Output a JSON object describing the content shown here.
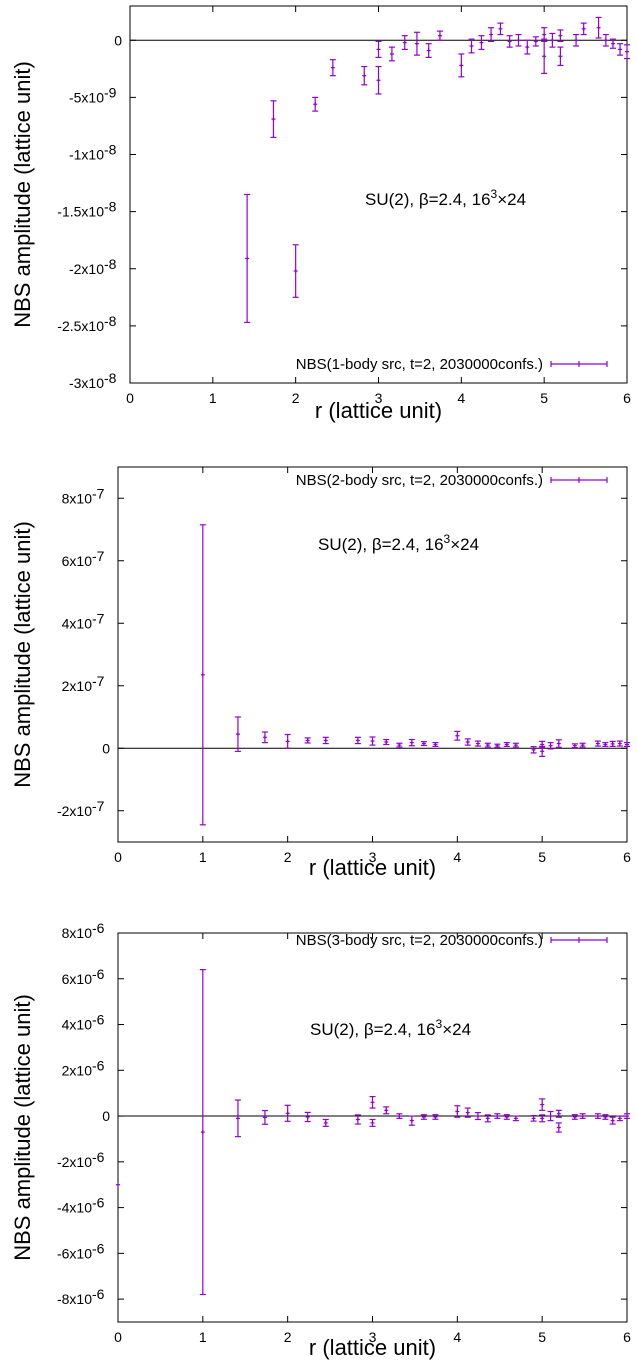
{
  "chart_data": [
    {
      "type": "scatter",
      "xlabel": "r (lattice unit)",
      "ylabel": "NBS amplitude (lattice unit)",
      "xlim": [
        0,
        6
      ],
      "ylim": [
        -3e-08,
        3e-09
      ],
      "xticks": [
        {
          "v": 0,
          "label": "0"
        },
        {
          "v": 1,
          "label": "1"
        },
        {
          "v": 2,
          "label": "2"
        },
        {
          "v": 3,
          "label": "3"
        },
        {
          "v": 4,
          "label": "4"
        },
        {
          "v": 5,
          "label": "5"
        },
        {
          "v": 6,
          "label": "6"
        }
      ],
      "yticks": [
        {
          "v": 0,
          "mant": "0",
          "exp": ""
        },
        {
          "v": -5e-09,
          "mant": "-5x10",
          "exp": "-9"
        },
        {
          "v": -1e-08,
          "mant": "-1x10",
          "exp": "-8"
        },
        {
          "v": -1.5e-08,
          "mant": "-1.5x10",
          "exp": "-8"
        },
        {
          "v": -2e-08,
          "mant": "-2x10",
          "exp": "-8"
        },
        {
          "v": -2.5e-08,
          "mant": "-2.5x10",
          "exp": "-8"
        },
        {
          "v": -3e-08,
          "mant": "-3x10",
          "exp": "-8"
        }
      ],
      "zero_line": true,
      "legend": {
        "position": "bottom-right",
        "entry": "NBS(1-body src, t=2, 2030000confs.)"
      },
      "annotation": {
        "text_a": "SU(2), β=2.4, 16",
        "sup": "3",
        "text_b": "×24",
        "position": "upper-right"
      },
      "series": [
        {
          "color": "#9400d3",
          "points": [
            {
              "x": 1.414,
              "y": -1.91e-08,
              "err": 5.6e-09
            },
            {
              "x": 1.732,
              "y": -6.9e-09,
              "err": 1.6e-09
            },
            {
              "x": 2.0,
              "y": -2.02e-08,
              "err": 2.3e-09
            },
            {
              "x": 2.236,
              "y": -5.6e-09,
              "err": 6e-10
            },
            {
              "x": 2.449,
              "y": -2.4e-09,
              "err": 7e-10
            },
            {
              "x": 2.828,
              "y": -3.1e-09,
              "err": 8e-10
            },
            {
              "x": 3.0,
              "y": -3.5e-09,
              "err": 1.2e-09
            },
            {
              "x": 3.0,
              "y": -8e-10,
              "err": 7e-10
            },
            {
              "x": 3.162,
              "y": -1.2e-09,
              "err": 6e-10
            },
            {
              "x": 3.317,
              "y": -2e-10,
              "err": 6e-10
            },
            {
              "x": 3.464,
              "y": -3e-10,
              "err": 1e-09
            },
            {
              "x": 3.606,
              "y": -9e-10,
              "err": 6e-10
            },
            {
              "x": 3.742,
              "y": 4e-10,
              "err": 4e-10
            },
            {
              "x": 4.0,
              "y": -2.2e-09,
              "err": 1e-09
            },
            {
              "x": 4.123,
              "y": -5e-10,
              "err": 6e-10
            },
            {
              "x": 4.243,
              "y": -2e-10,
              "err": 6e-10
            },
            {
              "x": 4.359,
              "y": 5e-10,
              "err": 6e-10
            },
            {
              "x": 4.472,
              "y": 1e-09,
              "err": 5e-10
            },
            {
              "x": 4.583,
              "y": -1e-10,
              "err": 5e-10
            },
            {
              "x": 4.69,
              "y": 0,
              "err": 5e-10
            },
            {
              "x": 4.796,
              "y": -6e-10,
              "err": 6e-10
            },
            {
              "x": 4.899,
              "y": -1e-10,
              "err": 4e-10
            },
            {
              "x": 5.0,
              "y": -1.4e-09,
              "err": 1.5e-09
            },
            {
              "x": 5.0,
              "y": 5e-10,
              "err": 6e-10
            },
            {
              "x": 5.099,
              "y": 0,
              "err": 6e-10
            },
            {
              "x": 5.196,
              "y": -1.4e-09,
              "err": 8e-10
            },
            {
              "x": 5.196,
              "y": 4e-10,
              "err": 5e-10
            },
            {
              "x": 5.385,
              "y": 0,
              "err": 5e-10
            },
            {
              "x": 5.477,
              "y": 1e-09,
              "err": 5e-10
            },
            {
              "x": 5.657,
              "y": 1.1e-09,
              "err": 9e-10
            },
            {
              "x": 5.745,
              "y": 0,
              "err": 5e-10
            },
            {
              "x": 5.831,
              "y": -3e-10,
              "err": 4e-10
            },
            {
              "x": 5.916,
              "y": -8e-10,
              "err": 5e-10
            },
            {
              "x": 6.0,
              "y": -1e-09,
              "err": 6e-10
            }
          ]
        }
      ]
    },
    {
      "type": "scatter",
      "xlabel": "r (lattice unit)",
      "ylabel": "NBS amplitude (lattice unit)",
      "xlim": [
        0,
        6
      ],
      "ylim": [
        -3e-07,
        9e-07
      ],
      "xticks": [
        {
          "v": 0,
          "label": "0"
        },
        {
          "v": 1,
          "label": "1"
        },
        {
          "v": 2,
          "label": "2"
        },
        {
          "v": 3,
          "label": "3"
        },
        {
          "v": 4,
          "label": "4"
        },
        {
          "v": 5,
          "label": "5"
        },
        {
          "v": 6,
          "label": "6"
        }
      ],
      "yticks": [
        {
          "v": 8e-07,
          "mant": "8x10",
          "exp": "-7"
        },
        {
          "v": 6e-07,
          "mant": "6x10",
          "exp": "-7"
        },
        {
          "v": 4e-07,
          "mant": "4x10",
          "exp": "-7"
        },
        {
          "v": 2e-07,
          "mant": "2x10",
          "exp": "-7"
        },
        {
          "v": 0,
          "mant": "0",
          "exp": ""
        },
        {
          "v": -2e-07,
          "mant": "-2x10",
          "exp": "-7"
        }
      ],
      "zero_line": true,
      "legend": {
        "position": "top-right",
        "entry": "NBS(2-body src, t=2, 2030000confs.)"
      },
      "annotation": {
        "text_a": "SU(2), β=2.4, 16",
        "sup": "3",
        "text_b": "×24",
        "position": "upper-right"
      },
      "series": [
        {
          "color": "#9400d3",
          "points": [
            {
              "x": 1.0,
              "y": 2.35e-07,
              "err": 4.8e-07
            },
            {
              "x": 1.414,
              "y": 4.5e-08,
              "err": 5.5e-08
            },
            {
              "x": 1.732,
              "y": 3.5e-08,
              "err": 1.7e-08
            },
            {
              "x": 2.0,
              "y": 2.2e-08,
              "err": 2.2e-08
            },
            {
              "x": 2.236,
              "y": 2.5e-08,
              "err": 8e-09
            },
            {
              "x": 2.449,
              "y": 2.5e-08,
              "err": 1e-08
            },
            {
              "x": 2.828,
              "y": 2.5e-08,
              "err": 1e-08
            },
            {
              "x": 3.0,
              "y": 2.3e-08,
              "err": 1.3e-08
            },
            {
              "x": 3.162,
              "y": 2e-08,
              "err": 8e-09
            },
            {
              "x": 3.317,
              "y": 1e-08,
              "err": 6e-09
            },
            {
              "x": 3.464,
              "y": 1.8e-08,
              "err": 1e-08
            },
            {
              "x": 3.606,
              "y": 1.5e-08,
              "err": 6e-09
            },
            {
              "x": 3.742,
              "y": 1.2e-08,
              "err": 6e-09
            },
            {
              "x": 4.0,
              "y": 4e-08,
              "err": 1.4e-08
            },
            {
              "x": 4.123,
              "y": 2e-08,
              "err": 1e-08
            },
            {
              "x": 4.243,
              "y": 1.5e-08,
              "err": 8e-09
            },
            {
              "x": 4.359,
              "y": 1e-08,
              "err": 6e-09
            },
            {
              "x": 4.472,
              "y": 8e-09,
              "err": 5e-09
            },
            {
              "x": 4.583,
              "y": 1.2e-08,
              "err": 6e-09
            },
            {
              "x": 4.69,
              "y": 1e-08,
              "err": 6e-09
            },
            {
              "x": 4.899,
              "y": -5e-09,
              "err": 1e-08
            },
            {
              "x": 5.0,
              "y": -1e-08,
              "err": 1.6e-08
            },
            {
              "x": 5.0,
              "y": 1.2e-08,
              "err": 1e-08
            },
            {
              "x": 5.099,
              "y": 8e-09,
              "err": 1e-08
            },
            {
              "x": 5.196,
              "y": 1.5e-08,
              "err": 1.2e-08
            },
            {
              "x": 5.385,
              "y": 8e-09,
              "err": 6e-09
            },
            {
              "x": 5.477,
              "y": 1e-08,
              "err": 6e-09
            },
            {
              "x": 5.657,
              "y": 1.5e-08,
              "err": 8e-09
            },
            {
              "x": 5.745,
              "y": 1.2e-08,
              "err": 6e-09
            },
            {
              "x": 5.831,
              "y": 1.4e-08,
              "err": 8e-09
            },
            {
              "x": 5.916,
              "y": 1.5e-08,
              "err": 8e-09
            },
            {
              "x": 6.0,
              "y": 1.2e-08,
              "err": 6e-09
            }
          ]
        }
      ]
    },
    {
      "type": "scatter",
      "xlabel": "r (lattice unit)",
      "ylabel": "NBS amplitude (lattice unit)",
      "xlim": [
        0,
        6
      ],
      "ylim": [
        -9e-06,
        8e-06
      ],
      "xticks": [
        {
          "v": 0,
          "label": "0"
        },
        {
          "v": 1,
          "label": "1"
        },
        {
          "v": 2,
          "label": "2"
        },
        {
          "v": 3,
          "label": "3"
        },
        {
          "v": 4,
          "label": "4"
        },
        {
          "v": 5,
          "label": "5"
        },
        {
          "v": 6,
          "label": "6"
        }
      ],
      "yticks": [
        {
          "v": 8e-06,
          "mant": "8x10",
          "exp": "-6"
        },
        {
          "v": 6e-06,
          "mant": "6x10",
          "exp": "-6"
        },
        {
          "v": 4e-06,
          "mant": "4x10",
          "exp": "-6"
        },
        {
          "v": 2e-06,
          "mant": "2x10",
          "exp": "-6"
        },
        {
          "v": 0,
          "mant": "0",
          "exp": ""
        },
        {
          "v": -2e-06,
          "mant": "-2x10",
          "exp": "-6"
        },
        {
          "v": -4e-06,
          "mant": "-4x10",
          "exp": "-6"
        },
        {
          "v": -6e-06,
          "mant": "-6x10",
          "exp": "-6"
        },
        {
          "v": -8e-06,
          "mant": "-8x10",
          "exp": "-6"
        }
      ],
      "zero_line": true,
      "legend": {
        "position": "top-right",
        "entry": "NBS(3-body src, t=2, 2030000confs.)"
      },
      "annotation": {
        "text_a": "SU(2), β=2.4, 16",
        "sup": "3",
        "text_b": "×24",
        "position": "upper-right"
      },
      "series": [
        {
          "color": "#9400d3",
          "points": [
            {
              "x": 0.0,
              "y": -3e-06,
              "err": 0
            },
            {
              "x": 1.0,
              "y": -7e-07,
              "err": 7.1e-06
            },
            {
              "x": 1.414,
              "y": -1e-07,
              "err": 8e-07
            },
            {
              "x": 1.732,
              "y": -6e-08,
              "err": 3e-07
            },
            {
              "x": 2.0,
              "y": 1.2e-07,
              "err": 3.5e-07
            },
            {
              "x": 2.236,
              "y": -4e-08,
              "err": 2e-07
            },
            {
              "x": 2.449,
              "y": -3e-07,
              "err": 1.5e-07
            },
            {
              "x": 2.828,
              "y": -1.5e-07,
              "err": 2e-07
            },
            {
              "x": 3.0,
              "y": -3e-07,
              "err": 1.5e-07
            },
            {
              "x": 3.0,
              "y": 6e-07,
              "err": 2.5e-07
            },
            {
              "x": 3.162,
              "y": 2.5e-07,
              "err": 1.5e-07
            },
            {
              "x": 3.317,
              "y": 0,
              "err": 1e-07
            },
            {
              "x": 3.464,
              "y": -2e-07,
              "err": 2e-07
            },
            {
              "x": 3.606,
              "y": -4e-08,
              "err": 1e-07
            },
            {
              "x": 3.742,
              "y": -4e-08,
              "err": 1e-07
            },
            {
              "x": 4.0,
              "y": 2e-07,
              "err": 2.5e-07
            },
            {
              "x": 4.123,
              "y": 1.5e-07,
              "err": 2e-07
            },
            {
              "x": 4.243,
              "y": 0,
              "err": 1.5e-07
            },
            {
              "x": 4.359,
              "y": -1e-07,
              "err": 1.5e-07
            },
            {
              "x": 4.472,
              "y": 0,
              "err": 1e-07
            },
            {
              "x": 4.583,
              "y": -4e-08,
              "err": 1e-07
            },
            {
              "x": 4.69,
              "y": -1e-07,
              "err": 1e-07
            },
            {
              "x": 4.899,
              "y": -1e-07,
              "err": 1.2e-07
            },
            {
              "x": 5.0,
              "y": 5e-07,
              "err": 2.5e-07
            },
            {
              "x": 5.0,
              "y": -1e-07,
              "err": 1.5e-07
            },
            {
              "x": 5.099,
              "y": 0,
              "err": 2e-07
            },
            {
              "x": 5.196,
              "y": -5e-07,
              "err": 2e-07
            },
            {
              "x": 5.196,
              "y": 1e-07,
              "err": 1.5e-07
            },
            {
              "x": 5.385,
              "y": -4e-08,
              "err": 1e-07
            },
            {
              "x": 5.477,
              "y": 0,
              "err": 1e-07
            },
            {
              "x": 5.657,
              "y": 0,
              "err": 1e-07
            },
            {
              "x": 5.745,
              "y": -4e-08,
              "err": 1e-07
            },
            {
              "x": 5.831,
              "y": -2e-07,
              "err": 1.5e-07
            },
            {
              "x": 5.916,
              "y": -1e-07,
              "err": 1e-07
            },
            {
              "x": 6.0,
              "y": 0,
              "err": 1e-07
            }
          ]
        }
      ]
    }
  ]
}
